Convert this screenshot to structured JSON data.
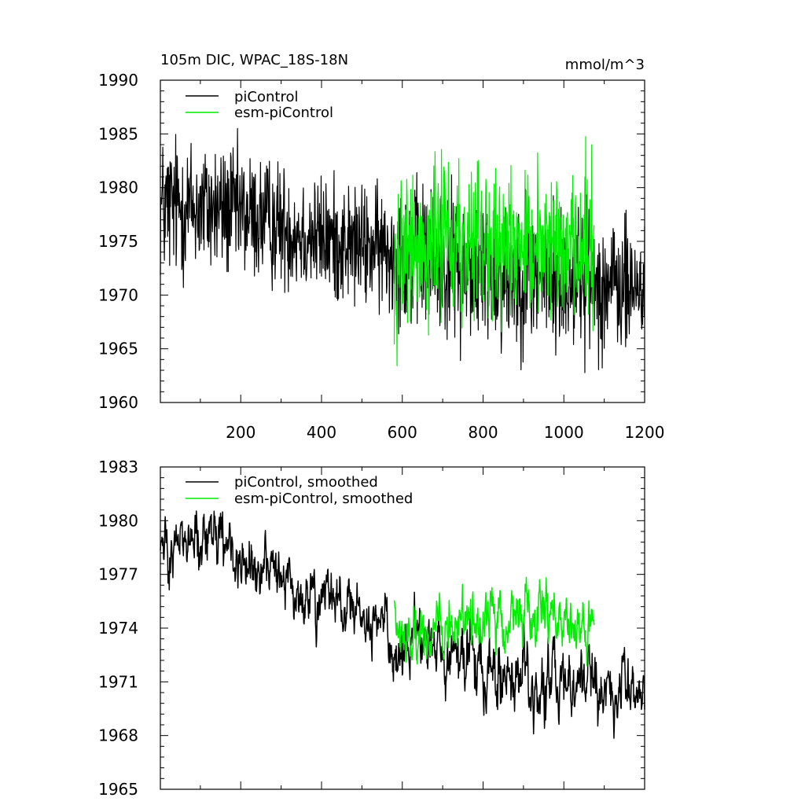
{
  "chart_data": [
    {
      "type": "line",
      "title": "105m DIC, WPAC_18S-18N",
      "units_label": "mmol/m^3",
      "xlabel": "",
      "ylabel": "",
      "xlim": [
        1,
        1200
      ],
      "ylim": [
        1960,
        1990
      ],
      "x_ticks": [
        200,
        400,
        600,
        800,
        1000,
        1200
      ],
      "y_ticks": [
        1960,
        1965,
        1970,
        1975,
        1980,
        1985,
        1990
      ],
      "x_tick_labels": [
        "200",
        "400",
        "600",
        "800",
        "1000",
        "1200"
      ],
      "y_tick_labels": [
        "1960",
        "1965",
        "1970",
        "1975",
        "1980",
        "1985",
        "1990"
      ],
      "legend_placement": "top-left",
      "grid": false,
      "series": [
        {
          "name": "piControl",
          "color": "#000000",
          "x_range": [
            1,
            1200
          ],
          "x": [
            1,
            50,
            100,
            150,
            200,
            250,
            300,
            350,
            400,
            450,
            500,
            550,
            600,
            650,
            700,
            750,
            800,
            850,
            900,
            950,
            1000,
            1050,
            1100,
            1150,
            1200
          ],
          "values": [
            1978,
            1978.3,
            1978.1,
            1977.9,
            1977.6,
            1977,
            1976.5,
            1975.8,
            1975.3,
            1974.9,
            1974.5,
            1974.2,
            1973.9,
            1973.4,
            1972.9,
            1972.6,
            1972.3,
            1972,
            1972.2,
            1971.6,
            1971.4,
            1971.8,
            1971,
            1970.6,
            1970.8
          ],
          "spread": [
            4.2,
            4.2,
            4,
            3.9,
            3.8,
            3.7,
            3.6,
            3.5,
            3.5,
            3.5,
            3.5,
            3.5,
            4.2,
            4.2,
            4.3,
            4.3,
            4.4,
            4.4,
            4.4,
            4.3,
            4.3,
            4.2,
            4,
            3.9,
            3.8
          ]
        },
        {
          "name": "esm-piControl",
          "color": "#00ee00",
          "x_range": [
            580,
            1075
          ],
          "x": [
            580,
            630,
            680,
            730,
            780,
            830,
            880,
            930,
            980,
            1030,
            1075
          ],
          "values": [
            1974.5,
            1974.2,
            1975,
            1974.8,
            1975,
            1975.5,
            1974.8,
            1975.7,
            1974.5,
            1974.2,
            1975.5
          ],
          "spread": [
            4.8,
            4.6,
            4.7,
            4.4,
            4.5,
            4.5,
            4.4,
            4.6,
            4.4,
            4.3,
            4.6
          ]
        }
      ]
    },
    {
      "type": "line",
      "title": "",
      "xlabel": "",
      "ylabel": "",
      "xlim": [
        1,
        1200
      ],
      "ylim": [
        1965,
        1983
      ],
      "x_ticks": [
        200,
        400,
        600,
        800,
        1000,
        1200
      ],
      "y_ticks": [
        1965,
        1968,
        1971,
        1974,
        1977,
        1980,
        1983
      ],
      "y_tick_labels": [
        "1965",
        "1968",
        "1971",
        "1974",
        "1977",
        "1980",
        "1983"
      ],
      "legend_placement": "top-left",
      "grid": false,
      "series": [
        {
          "name": "piControl, smoothed",
          "color": "#000000",
          "x_range": [
            1,
            1200
          ],
          "x": [
            1,
            50,
            100,
            150,
            200,
            250,
            300,
            350,
            400,
            450,
            500,
            550,
            600,
            650,
            700,
            750,
            800,
            850,
            900,
            950,
            1000,
            1050,
            1100,
            1150,
            1200
          ],
          "values": [
            1978.5,
            1978.8,
            1978.5,
            1978.6,
            1977.8,
            1977.2,
            1976.5,
            1975.7,
            1975.5,
            1975,
            1974.5,
            1974.1,
            1973.4,
            1973,
            1972.3,
            1972,
            1971.5,
            1970.9,
            1971,
            1970.7,
            1970.8,
            1971,
            1970.6,
            1970.4,
            1971
          ],
          "spread": [
            1.4,
            1.4,
            1.4,
            1.4,
            1.3,
            1.3,
            1.3,
            1.3,
            1.3,
            1.3,
            1.3,
            1.3,
            1.6,
            1.6,
            1.6,
            1.6,
            1.7,
            1.7,
            1.7,
            1.7,
            1.6,
            1.6,
            1.5,
            1.5,
            1.4
          ]
        },
        {
          "name": "esm-piControl, smoothed",
          "color": "#00ee00",
          "x_range": [
            580,
            1075
          ],
          "x": [
            580,
            630,
            680,
            730,
            780,
            830,
            880,
            930,
            980,
            1030,
            1075
          ],
          "values": [
            1974.7,
            1973.4,
            1974.3,
            1974.4,
            1974.8,
            1974.9,
            1974.5,
            1975.2,
            1975,
            1973.4,
            1974.8
          ],
          "spread": [
            1.4,
            1.3,
            1.3,
            1.2,
            1.2,
            1.2,
            1.2,
            1.3,
            1.3,
            1.3,
            1.3
          ]
        }
      ]
    }
  ]
}
